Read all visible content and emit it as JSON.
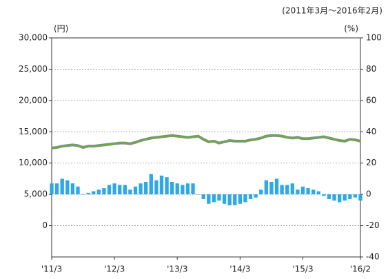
{
  "chart_data": {
    "type": "bar-line",
    "subtitle": "(2011年3月～2016年2月)",
    "y_label": "(円)",
    "y2_label": "(%)",
    "categories": [
      "'11/3",
      null,
      null,
      null,
      null,
      null,
      null,
      null,
      null,
      null,
      null,
      null,
      "'12/3",
      null,
      null,
      null,
      null,
      null,
      null,
      null,
      null,
      null,
      null,
      null,
      "'13/3",
      null,
      null,
      null,
      null,
      null,
      null,
      null,
      null,
      null,
      null,
      null,
      "'14/3",
      null,
      null,
      null,
      null,
      null,
      null,
      null,
      null,
      null,
      null,
      null,
      "'15/3",
      null,
      null,
      null,
      null,
      null,
      null,
      null,
      null,
      null,
      null,
      "'16/2"
    ],
    "series": [
      {
        "type": "line",
        "color": "#6aad45",
        "axis": "y",
        "values": [
          12400,
          12500,
          12700,
          12800,
          12900,
          12800,
          12500,
          12700,
          12700,
          12800,
          12900,
          13000,
          13100,
          13200,
          13200,
          13100,
          13300,
          13600,
          13800,
          14000,
          14100,
          14200,
          14300,
          14400,
          14300,
          14200,
          14100,
          14200,
          14300,
          13800,
          13400,
          13500,
          13200,
          13400,
          13600,
          13500,
          13500,
          13500,
          13700,
          13800,
          14000,
          14300,
          14400,
          14400,
          14300,
          14100,
          14000,
          14100,
          13900,
          13900,
          14000,
          14100,
          14200,
          14000,
          13800,
          13600,
          13500,
          13800,
          13700,
          13500
        ]
      },
      {
        "type": "bar",
        "color": "#2fa8e6",
        "axis": "y2",
        "values": [
          7,
          7,
          10,
          9,
          7,
          5,
          0,
          1,
          2,
          3,
          4,
          6,
          7,
          6,
          6,
          3,
          5,
          7,
          8,
          13,
          9,
          12,
          11,
          8,
          7,
          6,
          7,
          7,
          0,
          -3,
          -6,
          -5,
          -4,
          -6,
          -7,
          -7,
          -6,
          -5,
          -3,
          -2,
          3,
          9,
          8,
          10,
          6,
          6,
          7,
          3,
          5,
          4,
          3,
          2,
          -1,
          -3,
          -4,
          -5,
          -4,
          -3,
          -2,
          -4
        ]
      }
    ],
    "ylim": [
      -5000,
      30000
    ],
    "yticks": [
      0,
      {
        "value": 5000,
        "label": "5,000"
      },
      {
        "value": 10000,
        "label": "10,000"
      },
      {
        "value": 15000,
        "label": "15,000"
      },
      {
        "value": 20000,
        "label": "20,000"
      },
      {
        "value": 25000,
        "label": "25,000"
      },
      {
        "value": 30000,
        "label": "30,000"
      }
    ],
    "y2lim": [
      -40,
      100
    ],
    "y2ticks": [
      -40,
      -20,
      0,
      20,
      40,
      60,
      80,
      100
    ],
    "grid": true
  }
}
